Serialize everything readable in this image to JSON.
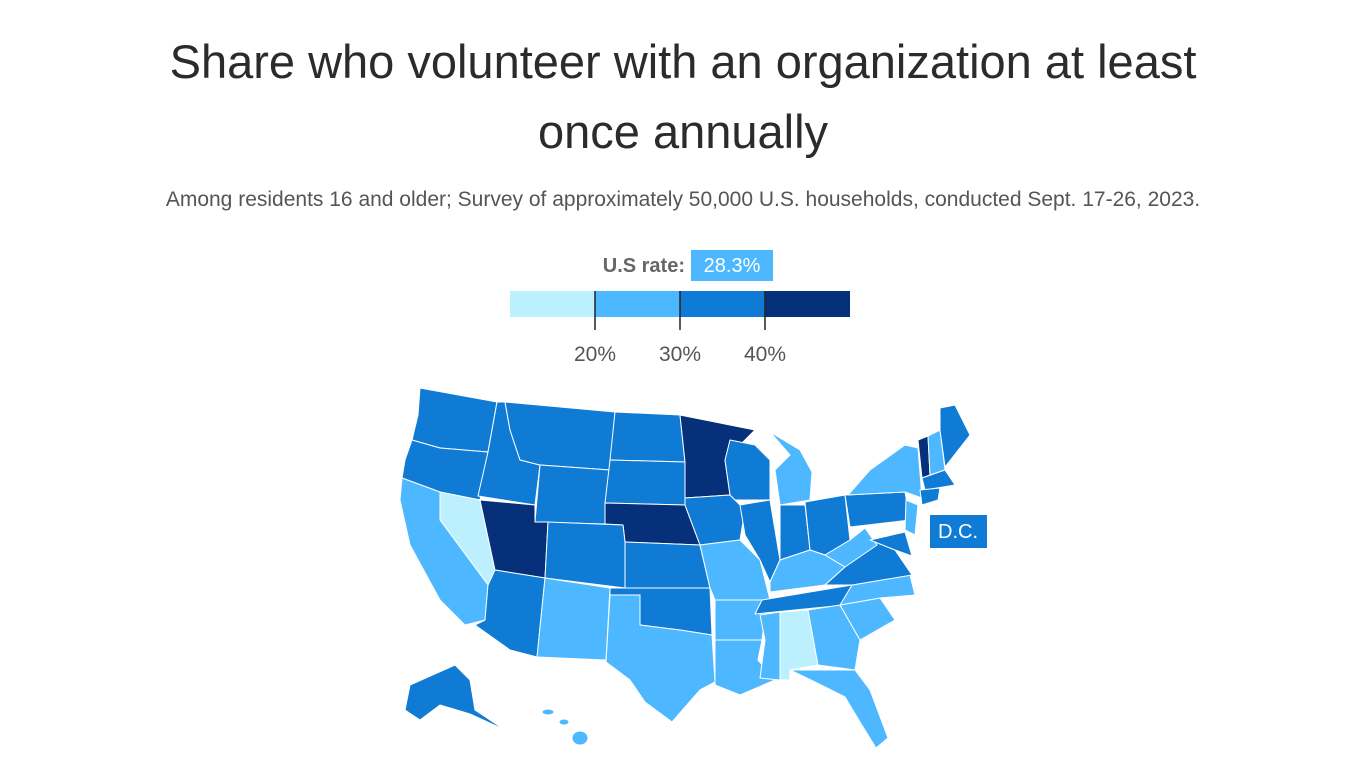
{
  "map": {
    "title": "Share who volunteer with an organization at least once annually",
    "subtitle": "Among residents 16 and older; Survey of approximately 50,000 U.S. households, conducted Sept. 17-26, 2023.",
    "us_rate": {
      "label": "U.S rate:",
      "value": 28.3,
      "value_label": "28.3%",
      "color": "#4db8ff"
    },
    "legend": {
      "colors": [
        "#bdf0ff",
        "#4db8ff",
        "#0f7bd4",
        "#06307a"
      ],
      "xlim": [
        10,
        50
      ],
      "xticks": [
        {
          "value": 20,
          "label": "20%"
        },
        {
          "value": 30,
          "label": "30%"
        },
        {
          "value": 40,
          "label": "40%"
        }
      ]
    },
    "dc": {
      "label": "D.C.",
      "color": "#0f7bd4"
    },
    "region_colors": [
      "#0f7bd4",
      "#0f7bd4",
      "#0f7bd4",
      "#0f7bd4",
      "#0f7bd4",
      "#0f7bd4",
      "#0f7bd4",
      "#06307a",
      "#06307a",
      "#0f7bd4",
      "#bdf0ff",
      "#4db8ff",
      "#06307a",
      "#0f7bd4",
      "#0f7bd4",
      "#4db8ff",
      "#0f7bd4",
      "#0f7bd4",
      "#4db8ff",
      "#4db8ff",
      "#4db8ff",
      "#4db8ff",
      "#0f7bd4",
      "#0f7bd4",
      "#4db8ff",
      "#0f7bd4",
      "#0f7bd4",
      "#4db8ff",
      "#0f7bd4",
      "#4db8ff",
      "#bdf0ff",
      "#4db8ff",
      "#4db8ff",
      "#4db8ff",
      "#4db8ff",
      "#0f7bd4",
      "#4db8ff",
      "#0f7bd4",
      "#4db8ff",
      "#06307a",
      "#4db8ff",
      "#0f7bd4",
      "#0f7bd4",
      "#0f7bd4",
      "#4db8ff",
      "#0f7bd4",
      "#0f7bd4",
      "#4db8ff",
      "#4db8ff",
      "#4db8ff"
    ]
  }
}
